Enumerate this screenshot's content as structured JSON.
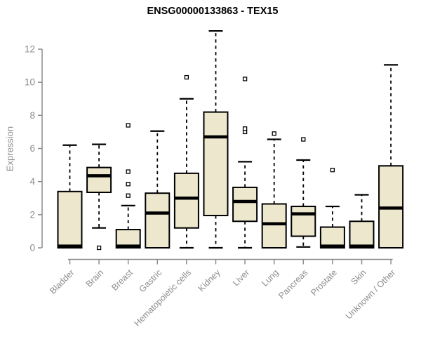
{
  "page": {
    "background": "#ffffff"
  },
  "chart_data": {
    "type": "boxplot",
    "title": "ENSG00000133863 - TEX15",
    "ylabel": "Expression",
    "xlabel": "",
    "ylim": [
      0,
      13.2
    ],
    "yticks": [
      0,
      2,
      4,
      6,
      8,
      10,
      12
    ],
    "grid": false,
    "legend_position": "none",
    "colors": {
      "box_fill": "#ede8cd",
      "box_stroke": "#000000",
      "median": "#000000",
      "whisker": "#000000",
      "outlier_fill": "#ffffff",
      "axis": "#8c8c8c",
      "title": "#000000"
    },
    "categories": [
      "Bladder",
      "Brain",
      "Breast",
      "Gastric",
      "Hematopoietic cells",
      "Kidney",
      "Liver",
      "Lung",
      "Pancreas",
      "Prostate",
      "Skin",
      "Unknown / Other"
    ],
    "series": [
      {
        "category": "Bladder",
        "whisker_low": 0,
        "q1": 0,
        "median": 0.1,
        "q3": 3.4,
        "whisker_high": 6.2,
        "outliers": []
      },
      {
        "category": "Brain",
        "whisker_low": 1.2,
        "q1": 3.35,
        "median": 4.35,
        "q3": 4.85,
        "whisker_high": 6.25,
        "outliers": [
          0
        ]
      },
      {
        "category": "Breast",
        "whisker_low": 0,
        "q1": 0,
        "median": 0.1,
        "q3": 1.1,
        "whisker_high": 2.55,
        "outliers": [
          3.15,
          3.85,
          4.6,
          7.4
        ]
      },
      {
        "category": "Gastric",
        "whisker_low": 0,
        "q1": 0,
        "median": 2.1,
        "q3": 3.3,
        "whisker_high": 7.05,
        "outliers": []
      },
      {
        "category": "Hematopoietic cells",
        "whisker_low": 0,
        "q1": 1.2,
        "median": 3.0,
        "q3": 4.5,
        "whisker_high": 9.0,
        "outliers": [
          10.3
        ]
      },
      {
        "category": "Kidney",
        "whisker_low": 0,
        "q1": 1.95,
        "median": 6.7,
        "q3": 8.2,
        "whisker_high": 13.1,
        "outliers": []
      },
      {
        "category": "Liver",
        "whisker_low": 0,
        "q1": 1.6,
        "median": 2.8,
        "q3": 3.65,
        "whisker_high": 5.2,
        "outliers": [
          7.0,
          7.2,
          10.2
        ]
      },
      {
        "category": "Lung",
        "whisker_low": 0,
        "q1": 0,
        "median": 1.45,
        "q3": 2.65,
        "whisker_high": 6.55,
        "outliers": [
          6.9
        ]
      },
      {
        "category": "Pancreas",
        "whisker_low": 0.05,
        "q1": 0.7,
        "median": 2.05,
        "q3": 2.5,
        "whisker_high": 5.3,
        "outliers": [
          6.55
        ]
      },
      {
        "category": "Prostate",
        "whisker_low": 0,
        "q1": 0,
        "median": 0.1,
        "q3": 1.25,
        "whisker_high": 2.5,
        "outliers": [
          4.7
        ]
      },
      {
        "category": "Skin",
        "whisker_low": 0,
        "q1": 0,
        "median": 0.1,
        "q3": 1.6,
        "whisker_high": 3.2,
        "outliers": []
      },
      {
        "category": "Unknown / Other",
        "whisker_low": 0,
        "q1": 0,
        "median": 2.4,
        "q3": 4.95,
        "whisker_high": 11.05,
        "outliers": []
      }
    ]
  }
}
